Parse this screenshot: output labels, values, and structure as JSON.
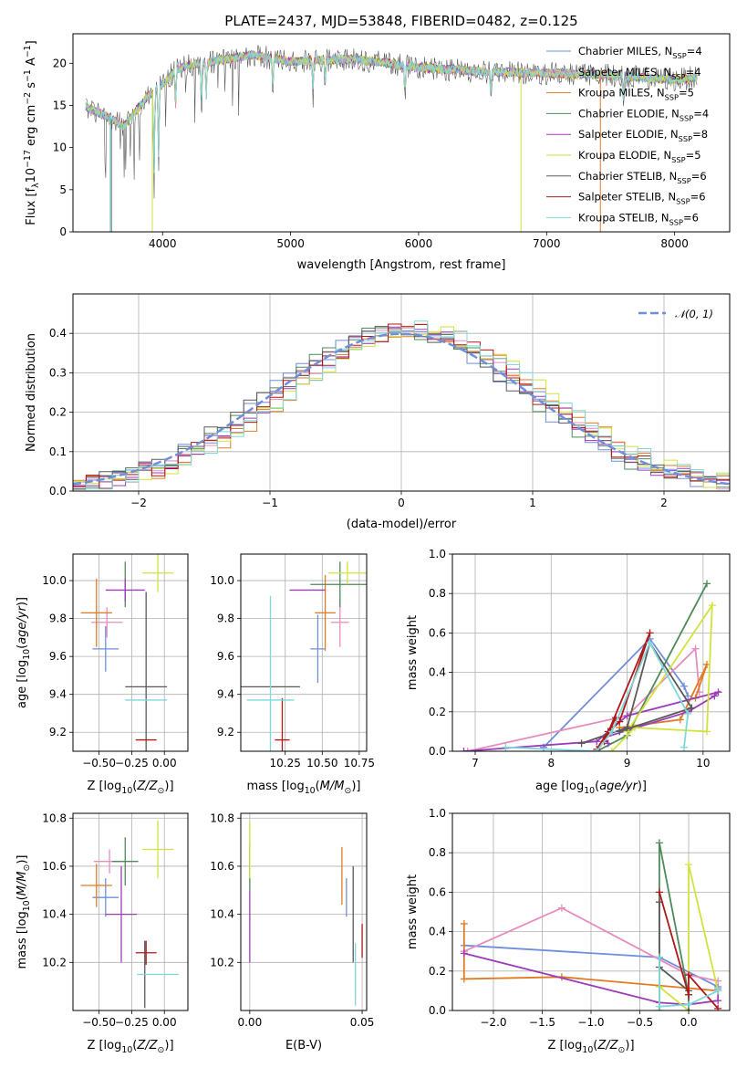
{
  "colors": {
    "Chabrier MILES": "#6e8fdc",
    "Salpeter MILES": "#e88cbf",
    "Kroupa MILES": "#e07b24",
    "Chabrier ELODIE": "#4f8a5a",
    "Salpeter ELODIE": "#9c3cb8",
    "Kroupa ELODIE": "#d2e23c",
    "Chabrier STELIB": "#5a5a5a",
    "Salpeter STELIB": "#b01818",
    "Kroupa STELIB": "#7ed8dc",
    "normal_curve": "#6e8fdc"
  },
  "series_names": [
    "Chabrier MILES",
    "Salpeter MILES",
    "Kroupa MILES",
    "Chabrier ELODIE",
    "Salpeter ELODIE",
    "Kroupa ELODIE",
    "Chabrier STELIB",
    "Salpeter STELIB",
    "Kroupa STELIB"
  ],
  "chart_data": [
    {
      "id": "spectrum",
      "type": "line",
      "title": "PLATE=2437, MJD=53848, FIBERID=0482, z=0.125",
      "xlabel": "wavelength [Angstrom, rest frame]",
      "ylabel": "Flux [f_λ 10^-17 erg cm^-2 s^-1 A^-1]",
      "xlim": [
        3300,
        8430
      ],
      "ylim": [
        0,
        23.5
      ],
      "xticks": [
        4000,
        5000,
        6000,
        7000,
        8000
      ],
      "yticks": [
        0,
        5,
        10,
        15,
        20
      ],
      "data_range": [
        3400,
        8180
      ],
      "continuum": [
        [
          3400,
          14.8
        ],
        [
          3550,
          13.8
        ],
        [
          3700,
          12.5
        ],
        [
          3800,
          14.5
        ],
        [
          3900,
          16.3
        ],
        [
          4000,
          17.5
        ],
        [
          4100,
          19.2
        ],
        [
          4200,
          19.8
        ],
        [
          4400,
          20.2
        ],
        [
          4700,
          21.0
        ],
        [
          5000,
          20.2
        ],
        [
          5500,
          20.5
        ],
        [
          6000,
          19.5
        ],
        [
          6500,
          19.0
        ],
        [
          7000,
          18.8
        ],
        [
          7500,
          18.6
        ],
        [
          8000,
          18.0
        ],
        [
          8180,
          18.4
        ]
      ],
      "legend": [
        {
          "label": "Chabrier MILES, N",
          "sub": "SSP",
          "suffix": "=4"
        },
        {
          "label": "Salpeter MILES, N",
          "sub": "SSP",
          "suffix": "=4"
        },
        {
          "label": "Kroupa MILES, N",
          "sub": "SSP",
          "suffix": "=5"
        },
        {
          "label": "Chabrier ELODIE, N",
          "sub": "SSP",
          "suffix": "=4"
        },
        {
          "label": "Salpeter ELODIE, N",
          "sub": "SSP",
          "suffix": "=8"
        },
        {
          "label": "Kroupa ELODIE, N",
          "sub": "SSP",
          "suffix": "=5"
        },
        {
          "label": "Chabrier STELIB, N",
          "sub": "SSP",
          "suffix": "=6"
        },
        {
          "label": "Salpeter STELIB, N",
          "sub": "SSP",
          "suffix": "=6"
        },
        {
          "label": "Kroupa STELIB, N",
          "sub": "SSP",
          "suffix": "=6"
        }
      ]
    },
    {
      "id": "residuals",
      "type": "area",
      "xlabel": "(data-model)/error",
      "ylabel": "Normed distribution",
      "xlim": [
        -2.5,
        2.5
      ],
      "ylim": [
        0,
        0.5
      ],
      "xticks": [
        -2,
        -1,
        0,
        1,
        2
      ],
      "yticks": [
        0.0,
        0.1,
        0.2,
        0.3,
        0.4
      ],
      "legend": "𝒩(0, 1)",
      "bin_width": 0.1
    },
    {
      "id": "age_vs_Z",
      "type": "scatter",
      "xlabel": "Z [log10(Z/Z⊙)]",
      "ylabel": "age  [log10(age/yr)]",
      "xlim": [
        -0.7,
        0.18
      ],
      "ylim": [
        9.1,
        10.14
      ],
      "xticks": [
        -0.5,
        -0.25,
        0.0
      ],
      "yticks": [
        9.2,
        9.4,
        9.6,
        9.8,
        10.0
      ],
      "points": [
        {
          "series": "Chabrier MILES",
          "x": -0.45,
          "y": 9.64,
          "xerr": 0.1,
          "yerr": 0.12
        },
        {
          "series": "Salpeter MILES",
          "x": -0.44,
          "y": 9.78,
          "xerr": 0.12,
          "yerr": 0.08
        },
        {
          "series": "Kroupa MILES",
          "x": -0.52,
          "y": 9.83,
          "xerr": 0.12,
          "yerr": 0.18
        },
        {
          "series": "Chabrier ELODIE",
          "x": -0.3,
          "y": 9.98,
          "xerr": 0.0,
          "yerr": 0.12
        },
        {
          "series": "Salpeter ELODIE",
          "x": -0.3,
          "y": 9.95,
          "xerr": 0.15,
          "yerr": 0.06
        },
        {
          "series": "Kroupa ELODIE",
          "x": -0.05,
          "y": 10.04,
          "xerr": 0.12,
          "yerr": 0.1
        },
        {
          "series": "Chabrier STELIB",
          "x": -0.14,
          "y": 9.44,
          "xerr": 0.16,
          "yerr": 0.5
        },
        {
          "series": "Salpeter STELIB",
          "x": -0.14,
          "y": 9.16,
          "xerr": 0.08,
          "yerr": 0.0
        },
        {
          "series": "Kroupa STELIB",
          "x": -0.14,
          "y": 9.37,
          "xerr": 0.16,
          "yerr": 0.0
        }
      ]
    },
    {
      "id": "age_vs_mass",
      "type": "scatter",
      "xlabel": "mass [log10(M/M⊙)]",
      "ylabel": "",
      "xlim": [
        9.95,
        10.8
      ],
      "ylim": [
        9.1,
        10.14
      ],
      "xticks": [
        10.25,
        10.5,
        10.75
      ],
      "tick_labels": [
        "10.25",
        "10.50",
        "10.75"
      ],
      "yticks": [
        9.2,
        9.4,
        9.6,
        9.8,
        10.0
      ],
      "points": [
        {
          "series": "Chabrier MILES",
          "x": 10.47,
          "y": 9.64,
          "xerr": 0.05,
          "yerr": 0.18
        },
        {
          "series": "Salpeter MILES",
          "x": 10.62,
          "y": 9.78,
          "xerr": 0.06,
          "yerr": 0.13
        },
        {
          "series": "Kroupa MILES",
          "x": 10.52,
          "y": 9.83,
          "xerr": 0.07,
          "yerr": 0.2
        },
        {
          "series": "Chabrier ELODIE",
          "x": 10.62,
          "y": 9.98,
          "xerr": 0.2,
          "yerr": 0.12
        },
        {
          "series": "Salpeter ELODIE",
          "x": 10.4,
          "y": 9.95,
          "xerr": 0.12,
          "yerr": 0.0
        },
        {
          "series": "Kroupa ELODIE",
          "x": 10.67,
          "y": 10.04,
          "xerr": 0.13,
          "yerr": 0.06
        },
        {
          "series": "Chabrier STELIB",
          "x": 10.15,
          "y": 9.44,
          "xerr": 0.2,
          "yerr": 0.0
        },
        {
          "series": "Salpeter STELIB",
          "x": 10.23,
          "y": 9.16,
          "xerr": 0.05,
          "yerr": 0.22
        },
        {
          "series": "Kroupa STELIB",
          "x": 10.15,
          "y": 9.37,
          "xerr": 0.16,
          "yerr": 0.55
        }
      ]
    },
    {
      "id": "weight_vs_age",
      "type": "line",
      "xlabel": "age  [log10(age/yr)]",
      "ylabel": "mass weight",
      "xlim": [
        6.7,
        10.35
      ],
      "ylim": [
        0,
        1
      ],
      "xticks": [
        7,
        8,
        9,
        10
      ],
      "yticks": [
        0.0,
        0.2,
        0.4,
        0.6,
        0.8,
        1.0
      ],
      "series": [
        {
          "name": "Chabrier MILES",
          "x": [
            7.9,
            9.3,
            9.75,
            9.8
          ],
          "y": [
            0.02,
            0.57,
            0.33,
            0.28
          ]
        },
        {
          "name": "Salpeter MILES",
          "x": [
            6.9,
            9.0,
            9.9,
            9.95
          ],
          "y": [
            0.0,
            0.18,
            0.52,
            0.3
          ]
        },
        {
          "name": "Kroupa MILES",
          "x": [
            8.9,
            9.7,
            10.05,
            9.9
          ],
          "y": [
            0.12,
            0.16,
            0.44,
            0.27
          ]
        },
        {
          "name": "Chabrier ELODIE",
          "x": [
            8.6,
            9.0,
            10.05
          ],
          "y": [
            0.0,
            0.08,
            0.85
          ]
        },
        {
          "name": "Salpeter ELODIE",
          "x": [
            6.85,
            8.6,
            9.0,
            10.2,
            10.15,
            9.8,
            8.7,
            8.75
          ],
          "y": [
            0.0,
            0.05,
            0.18,
            0.3,
            0.28,
            0.2,
            0.07,
            0.04
          ]
        },
        {
          "name": "Kroupa ELODIE",
          "x": [
            8.8,
            9.1,
            10.05,
            10.12,
            9.0
          ],
          "y": [
            0.0,
            0.12,
            0.1,
            0.74,
            0.1
          ]
        },
        {
          "name": "Chabrier STELIB",
          "x": [
            8.4,
            9.0,
            9.3,
            9.85,
            8.9
          ],
          "y": [
            0.04,
            0.12,
            0.55,
            0.22,
            0.1
          ]
        },
        {
          "name": "Salpeter STELIB",
          "x": [
            8.6,
            8.75,
            8.9,
            9.3,
            8.7,
            8.85
          ],
          "y": [
            0.01,
            0.1,
            0.15,
            0.6,
            0.05,
            0.17
          ]
        },
        {
          "name": "Kroupa STELIB",
          "x": [
            7.4,
            8.6,
            8.8,
            9.3,
            9.8,
            9.75
          ],
          "y": [
            0.02,
            0.0,
            0.1,
            0.55,
            0.19,
            0.02
          ]
        }
      ]
    },
    {
      "id": "mass_vs_Z",
      "type": "scatter",
      "xlabel": "Z [log10(Z/Z⊙)]",
      "ylabel": "mass [log10(M/M⊙)]",
      "xlim": [
        -0.7,
        0.18
      ],
      "ylim": [
        10.0,
        10.82
      ],
      "xticks": [
        -0.5,
        -0.25,
        0.0
      ],
      "yticks": [
        10.2,
        10.4,
        10.6,
        10.8
      ],
      "points": [
        {
          "series": "Chabrier MILES",
          "x": -0.45,
          "y": 10.47,
          "xerr": 0.1,
          "yerr": 0.08
        },
        {
          "series": "Salpeter MILES",
          "x": -0.42,
          "y": 10.62,
          "xerr": 0.12,
          "yerr": 0.05
        },
        {
          "series": "Kroupa MILES",
          "x": -0.52,
          "y": 10.52,
          "xerr": 0.12,
          "yerr": 0.09
        },
        {
          "series": "Chabrier ELODIE",
          "x": -0.3,
          "y": 10.62,
          "xerr": 0.1,
          "yerr": 0.1
        },
        {
          "series": "Salpeter ELODIE",
          "x": -0.33,
          "y": 10.4,
          "xerr": 0.12,
          "yerr": 0.2
        },
        {
          "series": "Kroupa ELODIE",
          "x": -0.05,
          "y": 10.67,
          "xerr": 0.12,
          "yerr": 0.12
        },
        {
          "series": "Chabrier STELIB",
          "x": -0.15,
          "y": 10.15,
          "xerr": 0.0,
          "yerr": 0.14
        },
        {
          "series": "Salpeter STELIB",
          "x": -0.14,
          "y": 10.24,
          "xerr": 0.08,
          "yerr": 0.05
        },
        {
          "series": "Kroupa STELIB",
          "x": -0.05,
          "y": 10.15,
          "xerr": 0.16,
          "yerr": 0.0
        }
      ]
    },
    {
      "id": "mass_vs_EBV",
      "type": "scatter",
      "xlabel": "E(B-V)",
      "ylabel": "",
      "xlim": [
        -0.004,
        0.052
      ],
      "ylim": [
        10.0,
        10.82
      ],
      "xticks": [
        0.0,
        0.05
      ],
      "tick_labels": [
        "0.00",
        "0.05"
      ],
      "yticks": [
        10.2,
        10.4,
        10.6,
        10.8
      ],
      "points": [
        {
          "series": "Chabrier MILES",
          "x": 0.043,
          "y": 10.47,
          "xerr": 0,
          "yerr": 0.08
        },
        {
          "series": "Salpeter MILES",
          "x": 0.0,
          "y": 10.62,
          "xerr": 0,
          "yerr": 0.05
        },
        {
          "series": "Kroupa MILES",
          "x": 0.041,
          "y": 10.56,
          "xerr": 0,
          "yerr": 0.12
        },
        {
          "series": "Chabrier ELODIE",
          "x": 0.0,
          "y": 10.6,
          "xerr": 0,
          "yerr": 0.1
        },
        {
          "series": "Salpeter ELODIE",
          "x": 0.0,
          "y": 10.35,
          "xerr": 0,
          "yerr": 0.15
        },
        {
          "series": "Kroupa ELODIE",
          "x": 0.0,
          "y": 10.67,
          "xerr": 0,
          "yerr": 0.12
        },
        {
          "series": "Chabrier STELIB",
          "x": 0.046,
          "y": 10.4,
          "xerr": 0,
          "yerr": 0.2
        },
        {
          "series": "Salpeter STELIB",
          "x": 0.05,
          "y": 10.29,
          "xerr": 0,
          "yerr": 0.07
        },
        {
          "series": "Kroupa STELIB",
          "x": 0.047,
          "y": 10.15,
          "xerr": 0,
          "yerr": 0.13
        }
      ]
    },
    {
      "id": "weight_vs_Z",
      "type": "line",
      "xlabel": "Z [log10(Z/Z⊙)]",
      "ylabel": "mass weight",
      "xlim": [
        -2.42,
        0.42
      ],
      "ylim": [
        0,
        1
      ],
      "xticks": [
        -2.0,
        -1.5,
        -1.0,
        -0.5,
        0.0
      ],
      "yticks": [
        0.0,
        0.2,
        0.4,
        0.6,
        0.8,
        1.0
      ],
      "series": [
        {
          "name": "Chabrier MILES",
          "x": [
            -2.3,
            -0.3,
            0.3,
            0.3
          ],
          "y": [
            0.33,
            0.27,
            0.12,
            0.11
          ]
        },
        {
          "name": "Salpeter MILES",
          "x": [
            -2.3,
            -1.3,
            0.0,
            0.3
          ],
          "y": [
            0.3,
            0.52,
            0.18,
            0.15
          ]
        },
        {
          "name": "Kroupa MILES",
          "x": [
            -2.3,
            -2.3,
            -1.3,
            0.3
          ],
          "y": [
            0.44,
            0.16,
            0.17,
            0.1
          ]
        },
        {
          "name": "Chabrier ELODIE",
          "x": [
            -0.3,
            -0.3,
            0.0
          ],
          "y": [
            0.0,
            0.85,
            0.08
          ]
        },
        {
          "name": "Salpeter ELODIE",
          "x": [
            -2.3,
            -0.3,
            0.0,
            0.3,
            0.3
          ],
          "y": [
            0.29,
            0.04,
            0.03,
            0.05,
            0.1
          ]
        },
        {
          "name": "Kroupa ELODIE",
          "x": [
            -0.3,
            0.0,
            0.0,
            0.3
          ],
          "y": [
            0.12,
            0.0,
            0.74,
            0.1
          ]
        },
        {
          "name": "Chabrier STELIB",
          "x": [
            -0.3,
            -0.3,
            0.0,
            0.0
          ],
          "y": [
            0.55,
            0.22,
            0.1,
            0.0
          ]
        },
        {
          "name": "Salpeter STELIB",
          "x": [
            -0.3,
            0.0,
            0.0,
            0.3
          ],
          "y": [
            0.6,
            0.08,
            0.18,
            0.01
          ]
        },
        {
          "name": "Kroupa STELIB",
          "x": [
            -0.3,
            -0.3,
            0.0,
            0.3
          ],
          "y": [
            0.27,
            0.02,
            0.03,
            0.1
          ]
        }
      ]
    }
  ]
}
